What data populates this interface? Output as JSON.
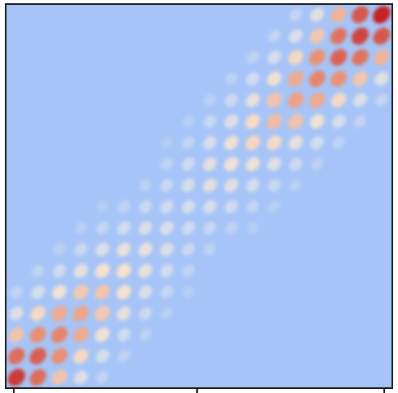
{
  "chart_data": {
    "type": "heatmap",
    "title": "",
    "xlabel": "",
    "ylabel": "",
    "colormap": "coolwarm",
    "colors": {
      "background": "#a6c4f7",
      "axis": "#1a1a1a"
    },
    "grid": "off",
    "legend": "none",
    "x_tick_labels": [
      "",
      "",
      ""
    ],
    "pattern": {
      "description_free": true,
      "rows": 18,
      "cols": 18,
      "lower_left_band": {
        "diagonal_span": [
          0,
          12
        ],
        "peak": 0.95,
        "decay_from_origin": 0.08
      },
      "upper_right_band": {
        "diagonal_span": [
          8,
          18
        ],
        "peak": 1.0,
        "growth_to_corner": 0.07
      },
      "diagonal_width": 5.5
    }
  }
}
